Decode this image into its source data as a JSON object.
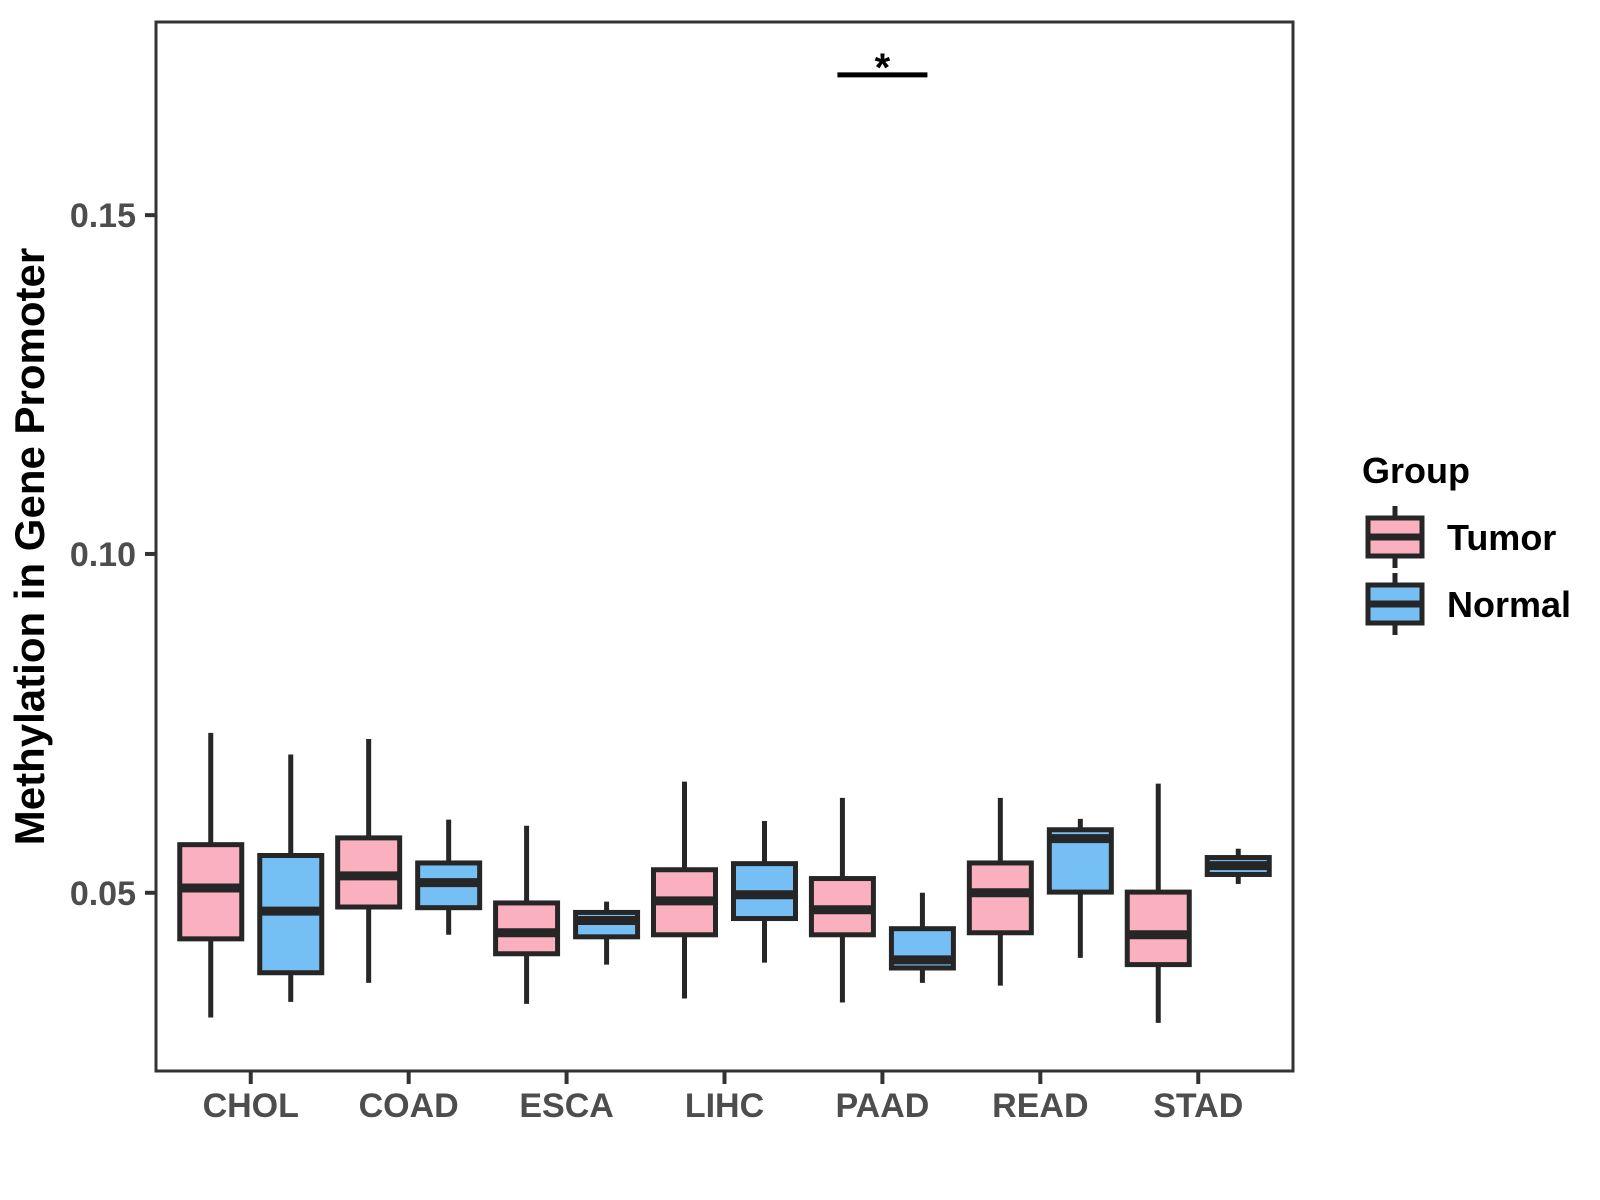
{
  "chart_data": {
    "type": "boxplot",
    "title": "",
    "xlabel": "",
    "ylabel": "Methylation in Gene Promoter",
    "categories": [
      "CHOL",
      "COAD",
      "ESCA",
      "LIHC",
      "PAAD",
      "READ",
      "STAD"
    ],
    "y_ticks": [
      0.05,
      0.1,
      0.15
    ],
    "y_tick_labels": [
      "0.05",
      "0.10",
      "0.15"
    ],
    "ylim": [
      0.0237,
      0.1785
    ],
    "grid": "off",
    "legend": {
      "title": "Group",
      "position": "right",
      "entries": [
        {
          "label": "Tumor",
          "color": "#FAB0BE"
        },
        {
          "label": "Normal",
          "color": "#75BFF4"
        }
      ]
    },
    "series": [
      {
        "name": "Tumor",
        "color": "#FAB0BE",
        "boxes": [
          {
            "category": "CHOL",
            "whisker_low": 0.0316,
            "q1": 0.0432,
            "median": 0.0507,
            "q3": 0.0571,
            "whisker_high": 0.0736
          },
          {
            "category": "COAD",
            "whisker_low": 0.0367,
            "q1": 0.0479,
            "median": 0.0525,
            "q3": 0.0581,
            "whisker_high": 0.0727
          },
          {
            "category": "ESCA",
            "whisker_low": 0.0336,
            "q1": 0.041,
            "median": 0.0441,
            "q3": 0.0485,
            "whisker_high": 0.0599
          },
          {
            "category": "LIHC",
            "whisker_low": 0.0344,
            "q1": 0.0438,
            "median": 0.0488,
            "q3": 0.0534,
            "whisker_high": 0.0664
          },
          {
            "category": "PAAD",
            "whisker_low": 0.0338,
            "q1": 0.0438,
            "median": 0.0475,
            "q3": 0.0521,
            "whisker_high": 0.064
          },
          {
            "category": "READ",
            "whisker_low": 0.0363,
            "q1": 0.0441,
            "median": 0.05,
            "q3": 0.0544,
            "whisker_high": 0.064
          },
          {
            "category": "STAD",
            "whisker_low": 0.0308,
            "q1": 0.0394,
            "median": 0.0438,
            "q3": 0.0501,
            "whisker_high": 0.0661
          }
        ]
      },
      {
        "name": "Normal",
        "color": "#75BFF4",
        "boxes": [
          {
            "category": "CHOL",
            "whisker_low": 0.0339,
            "q1": 0.0382,
            "median": 0.0473,
            "q3": 0.0555,
            "whisker_high": 0.0704
          },
          {
            "category": "COAD",
            "whisker_low": 0.0438,
            "q1": 0.0478,
            "median": 0.0515,
            "q3": 0.0544,
            "whisker_high": 0.0608
          },
          {
            "category": "ESCA",
            "whisker_low": 0.0394,
            "q1": 0.0435,
            "median": 0.0459,
            "q3": 0.0471,
            "whisker_high": 0.0487
          },
          {
            "category": "LIHC",
            "whisker_low": 0.0397,
            "q1": 0.0462,
            "median": 0.0497,
            "q3": 0.0543,
            "whisker_high": 0.0606
          },
          {
            "category": "PAAD",
            "whisker_low": 0.0367,
            "q1": 0.0389,
            "median": 0.0401,
            "q3": 0.0447,
            "whisker_high": 0.05
          },
          {
            "category": "READ",
            "whisker_low": 0.0404,
            "q1": 0.0501,
            "median": 0.058,
            "q3": 0.0593,
            "whisker_high": 0.0609
          },
          {
            "category": "STAD",
            "whisker_low": 0.0513,
            "q1": 0.0527,
            "median": 0.054,
            "q3": 0.0552,
            "whisker_high": 0.0565
          }
        ]
      }
    ],
    "annotations": [
      {
        "type": "significance-bar",
        "category": "PAAD",
        "label": "*",
        "bar_y": 0.1707
      }
    ],
    "colors": {
      "tumor_fill": "#FAB0BE",
      "normal_fill": "#75BFF4",
      "box_stroke": "#262626",
      "panel_border": "#333333",
      "tick_stroke": "#333333",
      "tick_label": "#4D4D4D",
      "axis_title": "#000000",
      "annotation": "#000000",
      "background": "#FFFFFF"
    }
  }
}
